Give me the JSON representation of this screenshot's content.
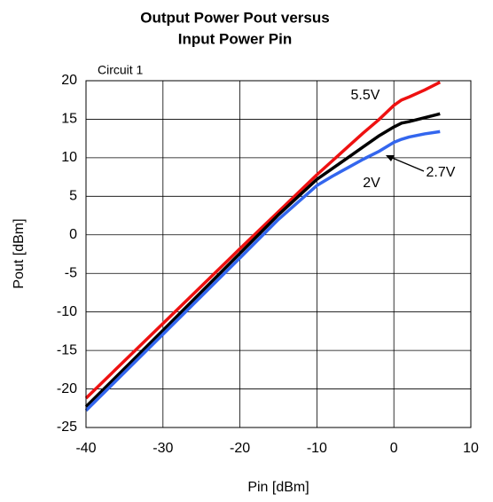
{
  "chart_data": {
    "type": "line",
    "title": [
      "Output Power Pout versus",
      "Input Power Pin"
    ],
    "annotations": [
      "Circuit 1",
      "5.5V",
      "2.7V",
      "2V"
    ],
    "x_label": "Pin [dBm]",
    "y_label": "Pout [dBm]",
    "x": [
      -40,
      -30,
      -20,
      -15,
      -10,
      -8,
      -6,
      -4,
      -2,
      0,
      1,
      2,
      4,
      6
    ],
    "series": [
      {
        "name": "5.5V",
        "color": "#ee1111",
        "values": [
          -21.2,
          -11.5,
          -1.8,
          3.0,
          7.8,
          9.6,
          11.4,
          13.2,
          14.9,
          16.8,
          17.5,
          17.9,
          18.8,
          19.8
        ]
      },
      {
        "name": "2.7V",
        "color": "#000000",
        "values": [
          -22.3,
          -12.4,
          -2.4,
          2.6,
          7.2,
          8.6,
          10.0,
          11.4,
          12.8,
          14.0,
          14.5,
          14.7,
          15.2,
          15.7
        ]
      },
      {
        "name": "2V",
        "color": "#3366ee",
        "values": [
          -22.8,
          -12.9,
          -3.0,
          2.0,
          6.4,
          7.6,
          8.7,
          9.8,
          10.8,
          12.0,
          12.4,
          12.7,
          13.1,
          13.4
        ]
      }
    ],
    "xlim": [
      -40,
      10
    ],
    "ylim": [
      -25,
      20
    ],
    "xticks": [
      -40,
      -30,
      -20,
      -10,
      0,
      10
    ],
    "yticks": [
      -25,
      -20,
      -15,
      -10,
      -5,
      0,
      5,
      10,
      15,
      20
    ],
    "grid": true
  }
}
